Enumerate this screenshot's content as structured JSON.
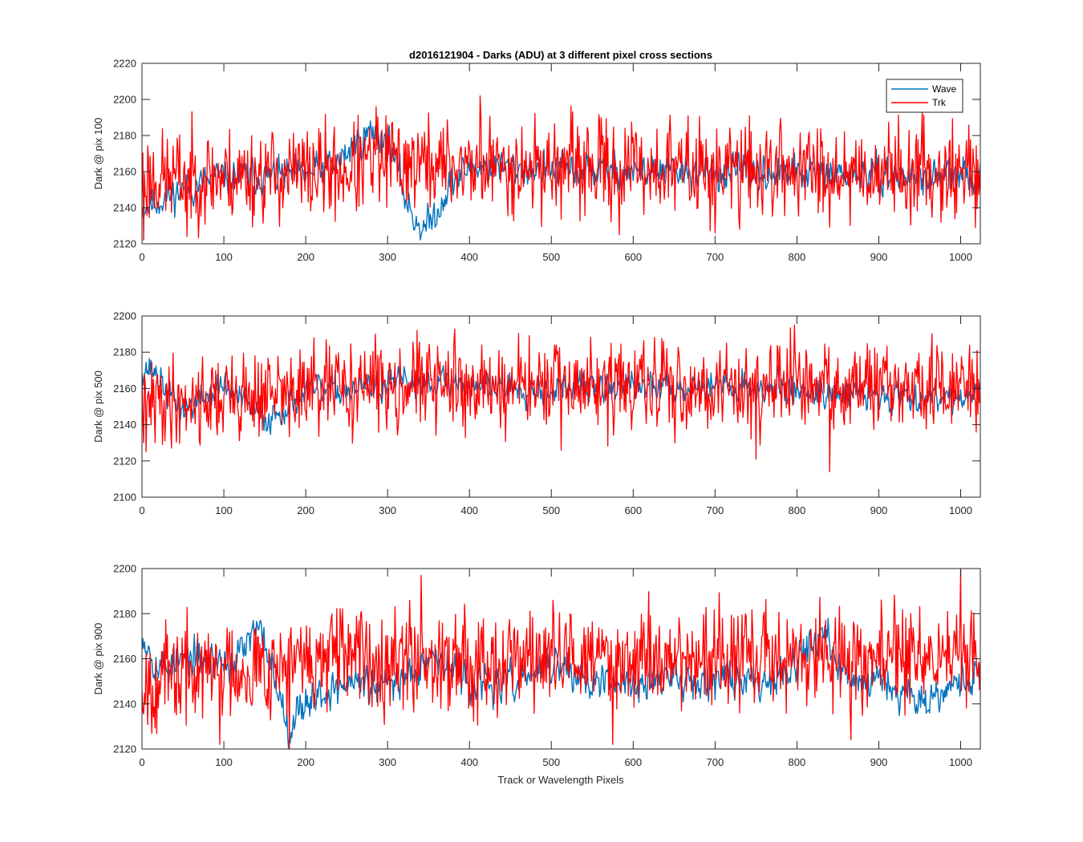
{
  "figure": {
    "title": "d2016121904 - Darks (ADU) at 3 different pixel cross sections",
    "xlabel": "Track or Wavelength Pixels"
  },
  "legend": {
    "placement": "top-right",
    "entries": [
      {
        "name": "Wave",
        "color": "#0072BD"
      },
      {
        "name": "Trk",
        "color": "#FF0000"
      }
    ]
  },
  "chart_data": [
    {
      "type": "line",
      "title": "d2016121904 - Darks (ADU) at 3 different pixel cross sections",
      "xlabel": "",
      "ylabel": "Dark @ pix 100",
      "xlim": [
        0,
        1024
      ],
      "ylim": [
        2120,
        2220
      ],
      "xticks": [
        0,
        100,
        200,
        300,
        400,
        500,
        600,
        700,
        800,
        900,
        1000
      ],
      "yticks": [
        2120,
        2140,
        2160,
        2180,
        2200,
        2220
      ],
      "grid": false,
      "legend": "top-right",
      "series": [
        {
          "name": "Wave",
          "color": "#0072BD",
          "base": [
            [
              0,
              2140
            ],
            [
              50,
              2150
            ],
            [
              100,
              2157
            ],
            [
              200,
              2158
            ],
            [
              240,
              2165
            ],
            [
              260,
              2175
            ],
            [
              280,
              2182
            ],
            [
              300,
              2178
            ],
            [
              310,
              2165
            ],
            [
              320,
              2148
            ],
            [
              330,
              2136
            ],
            [
              345,
              2128
            ],
            [
              360,
              2138
            ],
            [
              375,
              2152
            ],
            [
              400,
              2163
            ],
            [
              500,
              2161
            ],
            [
              1024,
              2157
            ]
          ],
          "amp": 7,
          "seed": 11
        },
        {
          "name": "Trk",
          "color": "#FF0000",
          "base": [
            [
              0,
              2156
            ],
            [
              250,
              2160
            ],
            [
              300,
              2166
            ],
            [
              350,
              2164
            ],
            [
              400,
              2163
            ],
            [
              1024,
              2160
            ]
          ],
          "amp": 13,
          "seed": 23
        }
      ],
      "peaks": [
        [
          413,
          2202
        ],
        [
          2,
          2122
        ],
        [
          55,
          2124
        ],
        [
          583,
          2125
        ],
        [
          700,
          2126
        ],
        [
          730,
          2128
        ],
        [
          286,
          2196
        ]
      ]
    },
    {
      "type": "line",
      "title": "",
      "xlabel": "",
      "ylabel": "Dark @ pix 500",
      "xlim": [
        0,
        1024
      ],
      "ylim": [
        2100,
        2200
      ],
      "xticks": [
        0,
        100,
        200,
        300,
        400,
        500,
        600,
        700,
        800,
        900,
        1000
      ],
      "yticks": [
        2100,
        2120,
        2140,
        2160,
        2180,
        2200
      ],
      "grid": false,
      "series": [
        {
          "name": "Wave",
          "color": "#0072BD",
          "base": [
            [
              0,
              2172
            ],
            [
              15,
              2170
            ],
            [
              30,
              2158
            ],
            [
              50,
              2148
            ],
            [
              100,
              2162
            ],
            [
              150,
              2142
            ],
            [
              200,
              2158
            ],
            [
              280,
              2160
            ],
            [
              350,
              2165
            ],
            [
              400,
              2162
            ],
            [
              500,
              2160
            ],
            [
              700,
              2162
            ],
            [
              900,
              2156
            ],
            [
              1024,
              2156
            ]
          ],
          "amp": 6,
          "seed": 37
        },
        {
          "name": "Trk",
          "color": "#FF0000",
          "base": [
            [
              0,
              2152
            ],
            [
              200,
              2158
            ],
            [
              300,
              2163
            ],
            [
              400,
              2161
            ],
            [
              1024,
              2160
            ]
          ],
          "amp": 12,
          "seed": 41
        }
      ],
      "peaks": [
        [
          797,
          2195
        ],
        [
          840,
          2114
        ],
        [
          750,
          2121
        ],
        [
          336,
          2192
        ],
        [
          5,
          2125
        ],
        [
          512,
          2126
        ]
      ]
    },
    {
      "type": "line",
      "title": "",
      "xlabel": "Track or Wavelength Pixels",
      "ylabel": "Dark @ pix 900",
      "xlim": [
        0,
        1024
      ],
      "ylim": [
        2120,
        2200
      ],
      "xticks": [
        0,
        100,
        200,
        300,
        400,
        500,
        600,
        700,
        800,
        900,
        1000
      ],
      "yticks": [
        2120,
        2140,
        2160,
        2180,
        2200
      ],
      "grid": false,
      "series": [
        {
          "name": "Wave",
          "color": "#0072BD",
          "base": [
            [
              0,
              2172
            ],
            [
              20,
              2156
            ],
            [
              60,
              2160
            ],
            [
              110,
              2158
            ],
            [
              140,
              2172
            ],
            [
              150,
              2168
            ],
            [
              165,
              2148
            ],
            [
              180,
              2130
            ],
            [
              200,
              2142
            ],
            [
              260,
              2150
            ],
            [
              290,
              2146
            ],
            [
              320,
              2152
            ],
            [
              350,
              2162
            ],
            [
              400,
              2150
            ],
            [
              430,
              2148
            ],
            [
              460,
              2150
            ],
            [
              500,
              2158
            ],
            [
              560,
              2148
            ],
            [
              620,
              2150
            ],
            [
              700,
              2152
            ],
            [
              760,
              2150
            ],
            [
              800,
              2160
            ],
            [
              830,
              2172
            ],
            [
              860,
              2150
            ],
            [
              900,
              2152
            ],
            [
              950,
              2142
            ],
            [
              1000,
              2150
            ],
            [
              1024,
              2154
            ]
          ],
          "amp": 6,
          "seed": 53
        },
        {
          "name": "Trk",
          "color": "#FF0000",
          "base": [
            [
              0,
              2150
            ],
            [
              100,
              2156
            ],
            [
              200,
              2158
            ],
            [
              300,
              2162
            ],
            [
              400,
              2160
            ],
            [
              1024,
              2161
            ]
          ],
          "amp": 11,
          "seed": 67
        }
      ],
      "peaks": [
        [
          341,
          2197
        ],
        [
          1000,
          2200
        ],
        [
          180,
          2120
        ],
        [
          866,
          2124
        ],
        [
          95,
          2122
        ],
        [
          575,
          2122
        ]
      ]
    }
  ]
}
